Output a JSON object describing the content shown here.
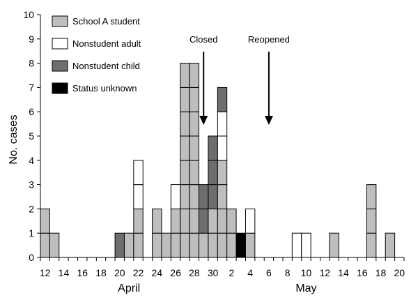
{
  "chart_data": {
    "type": "bar",
    "stacked": true,
    "ylabel": "No. cases",
    "ylim": [
      0,
      10
    ],
    "yticks": [
      0,
      1,
      2,
      3,
      4,
      5,
      6,
      7,
      8,
      9,
      10
    ],
    "grid": false,
    "legend_position": "top-left",
    "xlim_days": [
      "April 11.5",
      "May 20.5"
    ],
    "x_tick_labels": [
      "12",
      "14",
      "16",
      "18",
      "20",
      "22",
      "24",
      "26",
      "28",
      "30",
      "2",
      "4",
      "6",
      "8",
      "10",
      "12",
      "14",
      "16",
      "18",
      "20"
    ],
    "month_labels": [
      "April",
      "May"
    ],
    "series": [
      {
        "name": "School A student",
        "color": "#bebebe"
      },
      {
        "name": "Nonstudent adult",
        "color": "#ffffff"
      },
      {
        "name": "Nonstudent child",
        "color": "#6e6e6e"
      },
      {
        "name": "Status unknown",
        "color": "#000000"
      }
    ],
    "categories": [
      "Apr 12",
      "Apr 13",
      "Apr 20",
      "Apr 21",
      "Apr 22",
      "Apr 24",
      "Apr 25",
      "Apr 26",
      "Apr 27",
      "Apr 28",
      "Apr 29",
      "Apr 30",
      "May 1",
      "May 2",
      "May 3",
      "May 4",
      "May 9",
      "May 10",
      "May 13",
      "May 17",
      "May 19"
    ],
    "values": {
      "School A student": [
        2,
        1,
        0,
        1,
        2,
        2,
        1,
        2,
        8,
        8,
        1,
        2,
        4,
        2,
        0,
        1,
        0,
        0,
        1,
        3,
        1
      ],
      "Nonstudent adult": [
        0,
        0,
        0,
        0,
        2,
        0,
        0,
        1,
        0,
        0,
        0,
        0,
        2,
        0,
        0,
        1,
        1,
        1,
        0,
        0,
        0
      ],
      "Nonstudent child": [
        0,
        0,
        1,
        0,
        0,
        0,
        0,
        0,
        0,
        0,
        2,
        3,
        1,
        0,
        0,
        0,
        0,
        0,
        0,
        0,
        0
      ],
      "Status unknown": [
        0,
        0,
        0,
        0,
        0,
        0,
        0,
        0,
        0,
        0,
        0,
        0,
        0,
        0,
        1,
        0,
        0,
        0,
        0,
        0,
        0
      ]
    },
    "annotations": [
      {
        "label": "Closed",
        "date": "Apr 29"
      },
      {
        "label": "Reopened",
        "date": "May 6"
      }
    ]
  }
}
